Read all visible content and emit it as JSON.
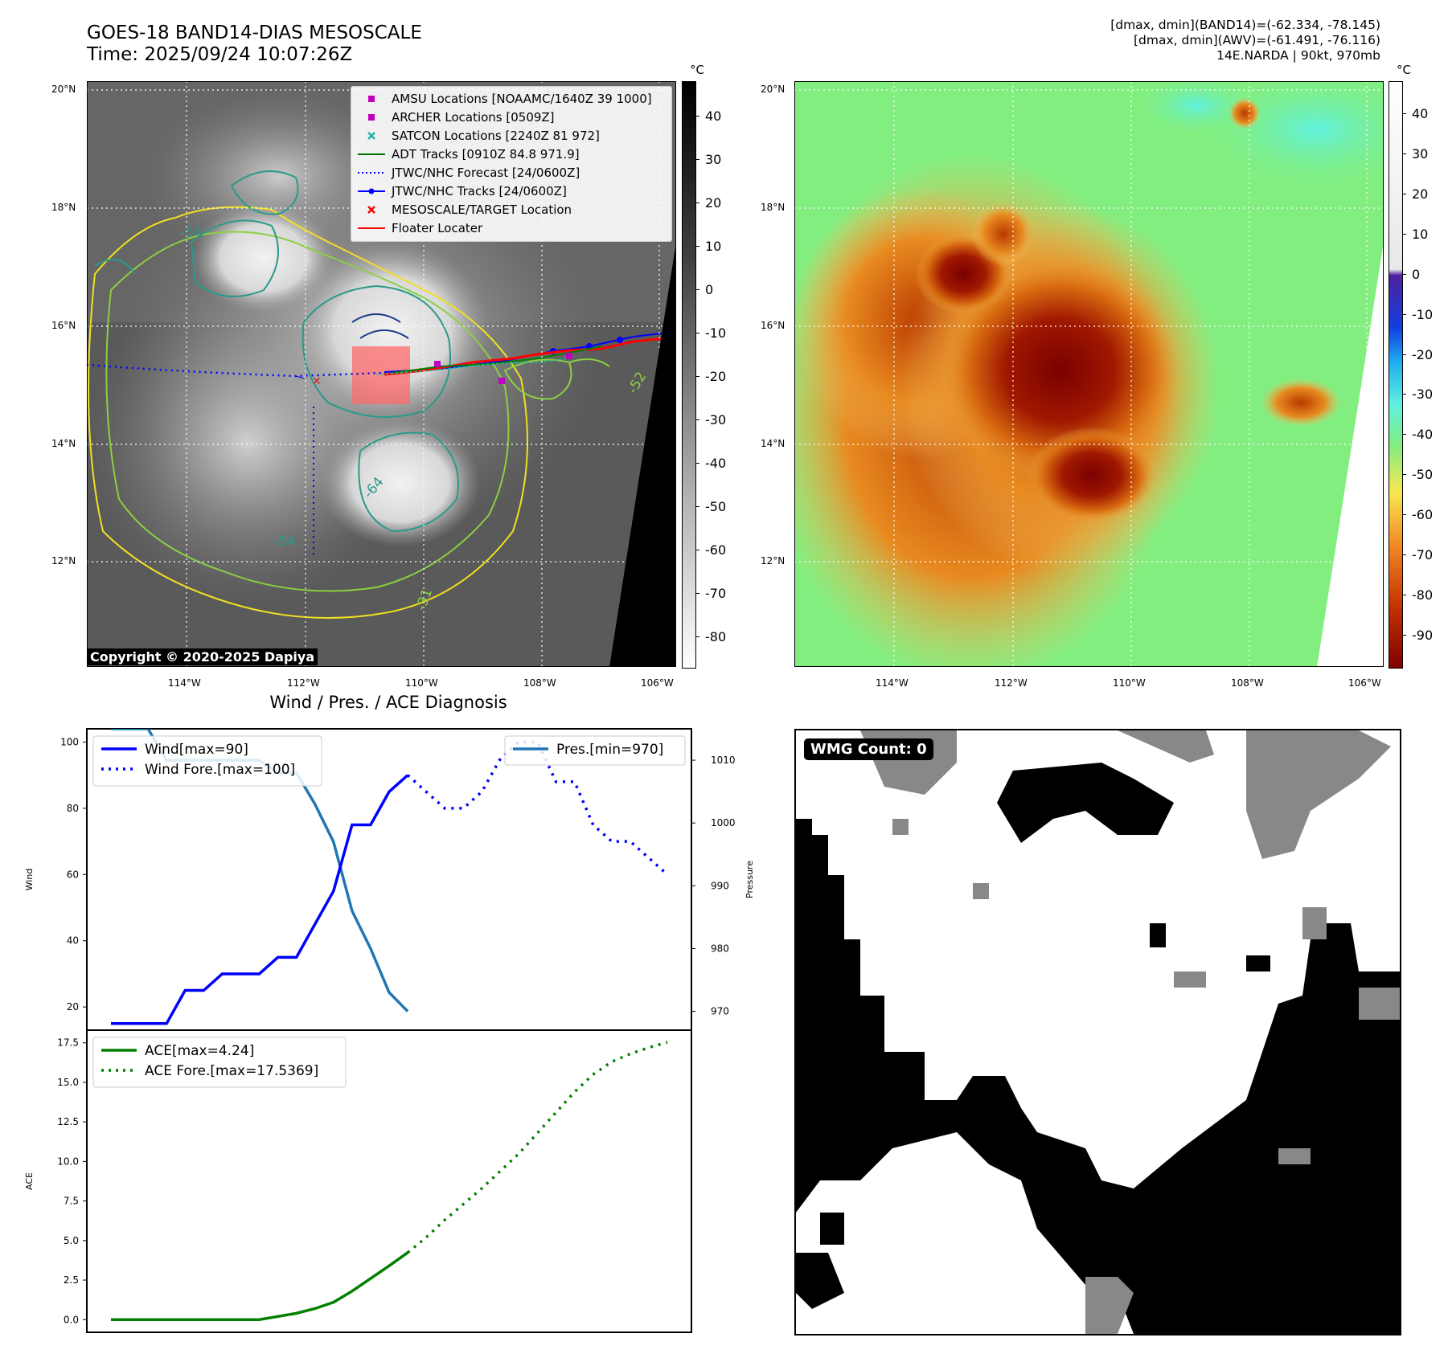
{
  "header": {
    "title_line1": "GOES-18 BAND14-DIAS MESOSCALE",
    "title_line2": "Time: 2025/09/24 10:07:26Z",
    "info_line1": "[dmax, dmin](BAND14)=(-62.334, -78.145)",
    "info_line2": "[dmax, dmin](AWV)=(-61.491, -76.116)",
    "info_line3": "14E.NARDA | 90kt, 970mb"
  },
  "map": {
    "lat_labels": [
      "20°N",
      "18°N",
      "16°N",
      "14°N",
      "12°N"
    ],
    "lon_labels": [
      "114°W",
      "112°W",
      "110°W",
      "108°W",
      "106°W"
    ],
    "unit": "°C",
    "copyright": "Copyright © 2020-2025 Dapiya",
    "contour_labels": [
      "-54",
      "-64",
      "-54",
      "-31",
      "-52"
    ],
    "legend": [
      {
        "label": "AMSU Locations [NOAAMC/1640Z 39 1000]",
        "marker": "square",
        "color": "#c000c0"
      },
      {
        "label": "ARCHER Locations [0509Z]",
        "marker": "square",
        "color": "#c000c0"
      },
      {
        "label": "SATCON Locations [2240Z 81 972]",
        "marker": "x",
        "color": "#20b0b0"
      },
      {
        "label": "ADT Tracks [0910Z 84.8 971.9]",
        "marker": "line",
        "color": "#007000"
      },
      {
        "label": "JTWC/NHC Forecast [24/0600Z]",
        "marker": "dotted",
        "color": "#0000ff"
      },
      {
        "label": "JTWC/NHC Tracks [24/0600Z]",
        "marker": "line-dot",
        "color": "#0000ff"
      },
      {
        "label": "MESOSCALE/TARGET Location",
        "marker": "x",
        "color": "#ff0000"
      },
      {
        "label": "Floater Locater",
        "marker": "line",
        "color": "#ff0000"
      }
    ],
    "gray_cbar_ticks": [
      "40",
      "30",
      "20",
      "10",
      "0",
      "-10",
      "-20",
      "-30",
      "-40",
      "-50",
      "-60",
      "-70",
      "-80"
    ],
    "color_cbar_ticks": [
      "40",
      "30",
      "20",
      "10",
      "0",
      "-10",
      "-20",
      "-30",
      "-40",
      "-50",
      "-60",
      "-70",
      "-80",
      "-90"
    ]
  },
  "diag": {
    "title": "Wind / Pres. / ACE Diagnosis",
    "wmg_label": "WMG Count: 0"
  },
  "colors": {
    "wind": "#0000ff",
    "pressure": "#1f77b4",
    "ace": "#008000",
    "floater": "#ff0000",
    "adt": "#007000"
  },
  "chart_data": [
    {
      "type": "line",
      "title": "Wind / Pres. / ACE Diagnosis",
      "ylabel": "Wind",
      "y2label": "Pressure",
      "ylim": [
        13,
        104
      ],
      "y2lim": [
        967,
        1015
      ],
      "yticks": [
        20,
        40,
        60,
        80,
        100
      ],
      "y2ticks": [
        970,
        980,
        990,
        1000,
        1010
      ],
      "series": [
        {
          "name": "Wind[max=90]",
          "axis": "left",
          "style": "solid",
          "x": [
            0,
            1,
            2,
            3,
            4,
            5,
            6,
            7,
            8,
            9,
            10,
            11,
            12,
            13,
            14,
            15,
            16
          ],
          "values": [
            15,
            15,
            15,
            15,
            25,
            25,
            30,
            30,
            30,
            35,
            35,
            45,
            55,
            75,
            75,
            85,
            90
          ]
        },
        {
          "name": "Wind Fore.[max=100]",
          "axis": "left",
          "style": "dotted",
          "x": [
            16,
            17,
            18,
            19,
            20,
            21,
            22,
            23,
            24,
            25,
            26,
            27,
            28,
            29,
            30
          ],
          "values": [
            90,
            85,
            80,
            80,
            85,
            95,
            100,
            100,
            88,
            88,
            75,
            70,
            70,
            65,
            60
          ]
        },
        {
          "name": "Pres.[min=970]",
          "axis": "right",
          "style": "solid",
          "x": [
            0,
            1,
            2,
            3,
            4,
            5,
            6,
            7,
            8,
            9,
            10,
            11,
            12,
            13,
            14,
            15,
            16
          ],
          "values": [
            1015,
            1015,
            1015,
            1010,
            1010,
            1010,
            1010,
            1010,
            1010,
            1008,
            1008,
            1003,
            997,
            986,
            980,
            973,
            970
          ]
        }
      ]
    },
    {
      "type": "line",
      "ylabel": "ACE",
      "ylim": [
        -0.8,
        18.3
      ],
      "yticks": [
        0.0,
        2.5,
        5.0,
        7.5,
        10.0,
        12.5,
        15.0,
        17.5
      ],
      "ytick_labels": [
        "0.0",
        "2.5",
        "5.0",
        "7.5",
        "10.0",
        "12.5",
        "15.0",
        "17.5"
      ],
      "series": [
        {
          "name": "ACE[max=4.24]",
          "style": "solid",
          "x": [
            0,
            1,
            2,
            3,
            4,
            5,
            6,
            7,
            8,
            9,
            10,
            11,
            12,
            13,
            14,
            15,
            16
          ],
          "values": [
            0,
            0,
            0,
            0,
            0,
            0,
            0,
            0,
            0,
            0.2,
            0.4,
            0.7,
            1.1,
            1.8,
            2.6,
            3.4,
            4.24
          ]
        },
        {
          "name": "ACE Fore.[max=17.5369]",
          "style": "dotted",
          "x": [
            16,
            17,
            18,
            19,
            20,
            21,
            22,
            23,
            24,
            25,
            26,
            27,
            28,
            29,
            30
          ],
          "values": [
            4.24,
            5.2,
            6.3,
            7.3,
            8.3,
            9.4,
            10.5,
            11.8,
            13.1,
            14.4,
            15.5,
            16.3,
            16.8,
            17.2,
            17.5369
          ]
        }
      ]
    }
  ]
}
